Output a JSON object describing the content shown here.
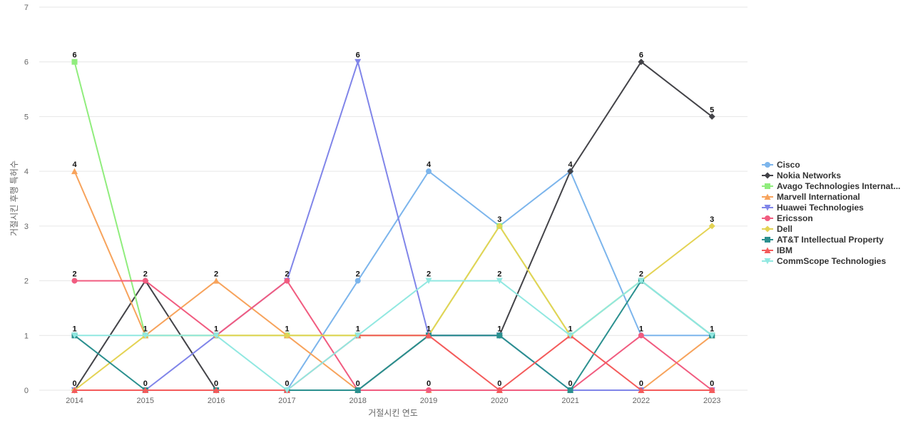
{
  "chart_data": {
    "type": "line",
    "xlabel": "거절시킨 연도",
    "ylabel": "거절시킨 후행 특허수",
    "ylim": [
      0,
      7
    ],
    "grid": true,
    "legend_position": "right",
    "x": [
      "2014",
      "2015",
      "2016",
      "2017",
      "2018",
      "2019",
      "2020",
      "2021",
      "2022",
      "2023"
    ],
    "series": [
      {
        "name": "Cisco",
        "color": "#7cb5ec",
        "marker": "circle",
        "values": [
          0,
          0,
          0,
          0,
          2,
          4,
          3,
          4,
          1,
          1
        ]
      },
      {
        "name": "Nokia Networks",
        "color": "#434348",
        "marker": "diamond",
        "values": [
          0,
          2,
          0,
          0,
          0,
          1,
          1,
          4,
          6,
          5
        ]
      },
      {
        "name": "Avago Technologies Internat...",
        "color": "#90ed7d",
        "marker": "square",
        "values": [
          6,
          1,
          1,
          1,
          1,
          1,
          3,
          1,
          2,
          1
        ]
      },
      {
        "name": "Marvell International",
        "color": "#f7a35c",
        "marker": "triangle",
        "values": [
          4,
          1,
          2,
          1,
          0,
          0,
          0,
          0,
          0,
          1
        ]
      },
      {
        "name": "Huawei Technologies",
        "color": "#8085e9",
        "marker": "triangle-down",
        "values": [
          0,
          0,
          1,
          2,
          6,
          1,
          1,
          0,
          0,
          0
        ]
      },
      {
        "name": "Ericsson",
        "color": "#f15c80",
        "marker": "circle",
        "values": [
          2,
          2,
          1,
          2,
          0,
          0,
          0,
          0,
          1,
          0
        ]
      },
      {
        "name": "Dell",
        "color": "#e4d354",
        "marker": "diamond",
        "values": [
          0,
          1,
          1,
          1,
          1,
          1,
          3,
          1,
          2,
          3
        ]
      },
      {
        "name": "AT&T Intellectual Property",
        "color": "#2b908f",
        "marker": "square",
        "values": [
          1,
          0,
          0,
          0,
          0,
          1,
          1,
          0,
          2,
          1
        ]
      },
      {
        "name": "IBM",
        "color": "#f45b5b",
        "marker": "triangle",
        "values": [
          0,
          0,
          0,
          0,
          1,
          1,
          0,
          1,
          0,
          0
        ]
      },
      {
        "name": "CommScope Technologies",
        "color": "#91e8e1",
        "marker": "triangle-down",
        "values": [
          1,
          1,
          1,
          0,
          1,
          2,
          2,
          1,
          2,
          1
        ]
      }
    ],
    "data_labels": [
      {
        "x": "2014",
        "value": 6
      },
      {
        "x": "2014",
        "value": 4
      },
      {
        "x": "2014",
        "value": 2
      },
      {
        "x": "2014",
        "value": 1
      },
      {
        "x": "2014",
        "value": 0
      },
      {
        "x": "2015",
        "value": 2
      },
      {
        "x": "2015",
        "value": 1
      },
      {
        "x": "2015",
        "value": 0
      },
      {
        "x": "2016",
        "value": 2
      },
      {
        "x": "2016",
        "value": 1
      },
      {
        "x": "2016",
        "value": 0
      },
      {
        "x": "2017",
        "value": 2
      },
      {
        "x": "2017",
        "value": 1
      },
      {
        "x": "2017",
        "value": 0
      },
      {
        "x": "2018",
        "value": 6
      },
      {
        "x": "2018",
        "value": 2
      },
      {
        "x": "2018",
        "value": 1
      },
      {
        "x": "2018",
        "value": 0
      },
      {
        "x": "2019",
        "value": 4
      },
      {
        "x": "2019",
        "value": 2
      },
      {
        "x": "2019",
        "value": 1
      },
      {
        "x": "2019",
        "value": 0
      },
      {
        "x": "2020",
        "value": 3
      },
      {
        "x": "2020",
        "value": 2
      },
      {
        "x": "2020",
        "value": 1
      },
      {
        "x": "2020",
        "value": 0
      },
      {
        "x": "2021",
        "value": 4
      },
      {
        "x": "2021",
        "value": 1
      },
      {
        "x": "2021",
        "value": 0
      },
      {
        "x": "2022",
        "value": 6
      },
      {
        "x": "2022",
        "value": 2
      },
      {
        "x": "2022",
        "value": 1
      },
      {
        "x": "2022",
        "value": 0
      },
      {
        "x": "2023",
        "value": 5
      },
      {
        "x": "2023",
        "value": 3
      },
      {
        "x": "2023",
        "value": 1
      },
      {
        "x": "2023",
        "value": 0
      }
    ]
  }
}
